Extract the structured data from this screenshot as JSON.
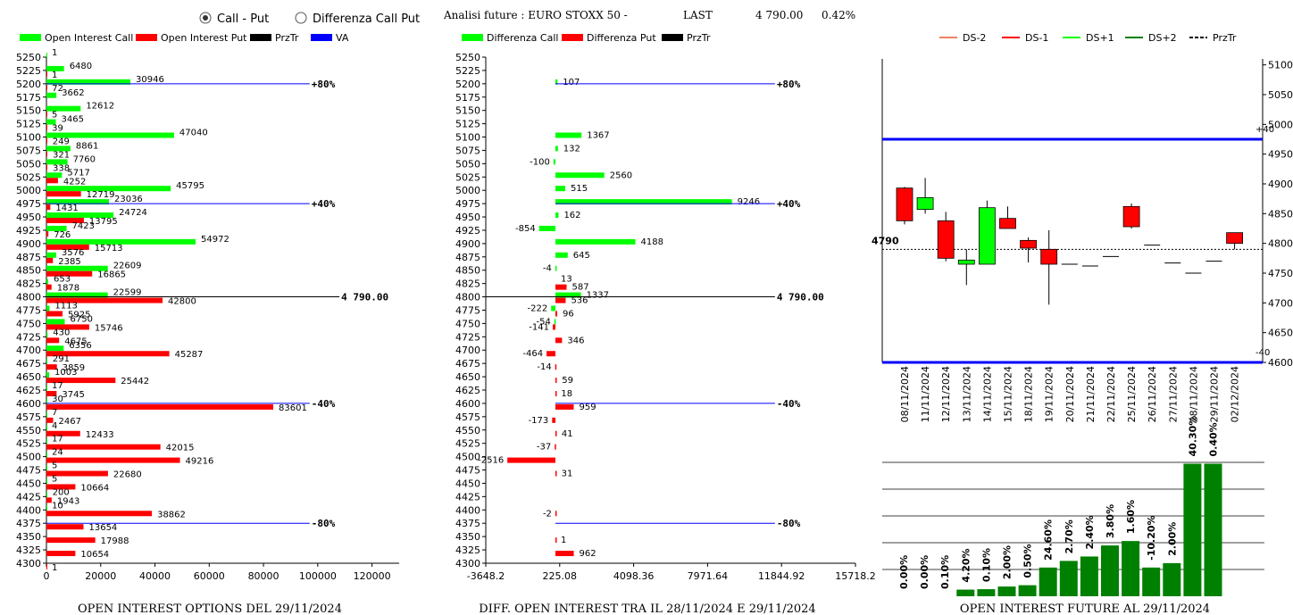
{
  "header": {
    "radio_call_put": "Call - Put",
    "radio_diff": "Differenza Call Put",
    "analysis_title": "Analisi future : EURO STOXX 50 -",
    "last_label": "LAST",
    "last_value": "4 790.00",
    "last_change": "0.42%"
  },
  "colors": {
    "call": "#00ff00",
    "put": "#ff0000",
    "prztr": "#000000",
    "va": "#0000ff",
    "oi_future": "#008000"
  },
  "chart_data": [
    {
      "type": "bar",
      "id": "open-interest-options",
      "title": "OPEN INTEREST OPTIONS DEL 29/11/2024",
      "legend": [
        "Open Interest Call",
        "Open Interest Put",
        "PrzTr",
        "VA"
      ],
      "strikes": [
        5250,
        5225,
        5200,
        5175,
        5150,
        5125,
        5100,
        5075,
        5050,
        5025,
        5000,
        4975,
        4950,
        4925,
        4900,
        4875,
        4850,
        4825,
        4800,
        4775,
        4750,
        4725,
        4700,
        4675,
        4650,
        4625,
        4600,
        4575,
        4550,
        4525,
        4500,
        4475,
        4450,
        4425,
        4400,
        4375,
        4350,
        4325,
        4300
      ],
      "series": [
        {
          "name": "Open Interest Call",
          "values": [
            1,
            6480,
            30946,
            3662,
            12612,
            3465,
            47040,
            8861,
            7760,
            5717,
            45795,
            23036,
            24724,
            7423,
            54972,
            3576,
            22609,
            653,
            22599,
            1113,
            6750,
            430,
            6356,
            291,
            1003,
            17,
            30,
            7,
            4,
            17,
            24,
            5,
            5,
            200,
            10,
            0,
            0,
            0,
            0
          ]
        },
        {
          "name": "Open Interest Put",
          "values": [
            0,
            1,
            72,
            0,
            5,
            39,
            249,
            321,
            338,
            4252,
            12719,
            1431,
            13795,
            726,
            15713,
            2385,
            16865,
            1878,
            42800,
            5925,
            15746,
            4675,
            45287,
            3859,
            25442,
            3745,
            83601,
            2467,
            12433,
            42015,
            49216,
            22680,
            10664,
            1943,
            38862,
            13654,
            17988,
            10654,
            1
          ]
        }
      ],
      "xticks": [
        0,
        20000,
        40000,
        60000,
        80000,
        100000,
        120000
      ],
      "xlim": [
        0,
        130000
      ],
      "ref_lines": [
        {
          "strike": 5200,
          "value": 97000,
          "label": "+80%"
        },
        {
          "strike": 4975,
          "value": 97000,
          "label": "+40%"
        },
        {
          "strike": 4800,
          "value": 108000,
          "label": "4 790.00"
        },
        {
          "strike": 4600,
          "value": 97000,
          "label": "-40%"
        },
        {
          "strike": 4375,
          "value": 97000,
          "label": "-80%"
        }
      ]
    },
    {
      "type": "bar",
      "id": "diff-open-interest",
      "title": "DIFF. OPEN INTEREST TRA IL 28/11/2024 E 29/11/2024",
      "legend": [
        "Differenza Call",
        "Differenza Put",
        "PrzTr"
      ],
      "strikes": [
        5250,
        5225,
        5200,
        5175,
        5150,
        5125,
        5100,
        5075,
        5050,
        5025,
        5000,
        4975,
        4950,
        4925,
        4900,
        4875,
        4850,
        4825,
        4800,
        4775,
        4750,
        4725,
        4700,
        4675,
        4650,
        4625,
        4600,
        4575,
        4550,
        4525,
        4500,
        4475,
        4450,
        4425,
        4400,
        4375,
        4350,
        4325,
        4300
      ],
      "series": [
        {
          "name": "Differenza Call",
          "values": [
            null,
            null,
            107,
            null,
            null,
            null,
            1367,
            132,
            -100,
            2560,
            515,
            9246,
            162,
            -854,
            4188,
            645,
            -4,
            null,
            1337,
            -222,
            -54,
            null,
            null,
            null,
            null,
            null,
            null,
            null,
            null,
            null,
            null,
            null,
            null,
            null,
            null,
            null,
            null,
            null,
            null
          ]
        },
        {
          "name": "Differenza Put",
          "values": [
            null,
            null,
            null,
            null,
            null,
            null,
            null,
            null,
            null,
            null,
            null,
            null,
            null,
            null,
            null,
            null,
            null,
            587,
            536,
            96,
            -141,
            346,
            -464,
            -14,
            59,
            18,
            959,
            -173,
            41,
            -37,
            -2516,
            31,
            null,
            null,
            -2,
            null,
            1,
            962,
            null
          ]
        }
      ],
      "extra_labels": [
        {
          "strike": 4825,
          "value": 13,
          "label": "13"
        }
      ],
      "xticks": [
        -3648.2,
        225.08,
        4098.36,
        7971.64,
        11844.92,
        15718.2
      ],
      "xtick_labels": [
        "-3648.2",
        "225.08",
        "4098.36",
        "7971.64",
        "11844.92",
        "15718.2"
      ],
      "xlim": [
        -3648.2,
        15718.2
      ],
      "ref_lines": [
        {
          "strike": 5200,
          "value": 11500,
          "label": "+80%"
        },
        {
          "strike": 4975,
          "value": 11500,
          "label": "+40%"
        },
        {
          "strike": 4800,
          "value": 11500,
          "label": "4 790.00"
        },
        {
          "strike": 4600,
          "value": 11500,
          "label": "-40%"
        },
        {
          "strike": 4375,
          "value": 11500,
          "label": "-80%"
        }
      ]
    },
    {
      "type": "candlestick",
      "id": "future-candles",
      "legend": [
        "DS-2",
        "DS-1",
        "DS+1",
        "DS+2",
        "PrzTr"
      ],
      "legend_colors": [
        "#f08060",
        "#ff0000",
        "#00ff00",
        "#008000",
        "#000000"
      ],
      "dates": [
        "08/11/2024",
        "11/11/2024",
        "12/11/2024",
        "13/11/2024",
        "14/11/2024",
        "15/11/2024",
        "18/11/2024",
        "19/11/2024",
        "20/11/2024",
        "21/11/2024",
        "22/11/2024",
        "25/11/2024",
        "26/11/2024",
        "27/11/2024",
        "28/11/2024",
        "29/11/2024",
        "02/12/2024"
      ],
      "candles": [
        {
          "open": 4838,
          "close": 4893,
          "high": 4895,
          "low": 4832,
          "color": "#ff0000"
        },
        {
          "open": 4857,
          "close": 4877,
          "high": 4910,
          "low": 4850,
          "color": "#00ff00"
        },
        {
          "open": 4838,
          "close": 4775,
          "high": 4853,
          "low": 4770,
          "color": "#ff0000"
        },
        {
          "open": 4765,
          "close": 4772,
          "high": 4790,
          "low": 4730,
          "color": "#00ff00"
        },
        {
          "open": 4765,
          "close": 4860,
          "high": 4872,
          "low": 4765,
          "color": "#00ff00"
        },
        {
          "open": 4842,
          "close": 4825,
          "high": 4862,
          "low": 4825,
          "color": "#ff0000"
        },
        {
          "open": 4805,
          "close": 4792,
          "high": 4810,
          "low": 4768,
          "color": "#ff0000"
        },
        {
          "open": 4790,
          "close": 4765,
          "high": 4822,
          "low": 4697,
          "color": "#ff0000"
        },
        {
          "open": 4765,
          "close": 4765,
          "high": 4765,
          "low": 4765,
          "color": "#000000"
        },
        {
          "open": 4762,
          "close": 4762,
          "high": 4762,
          "low": 4762,
          "color": "#000000"
        },
        {
          "open": 4778,
          "close": 4778,
          "high": 4778,
          "low": 4778,
          "color": "#000000"
        },
        {
          "open": 4862,
          "close": 4828,
          "high": 4867,
          "low": 4825,
          "color": "#ff0000"
        },
        {
          "open": 4797,
          "close": 4797,
          "high": 4797,
          "low": 4797,
          "color": "#000000"
        },
        {
          "open": 4767,
          "close": 4767,
          "high": 4767,
          "low": 4767,
          "color": "#000000"
        },
        {
          "open": 4750,
          "close": 4750,
          "high": 4750,
          "low": 4750,
          "color": "#000000"
        },
        {
          "open": 4770,
          "close": 4770,
          "high": 4770,
          "low": 4770,
          "color": "#000000"
        },
        {
          "open": 4818,
          "close": 4800,
          "high": 4818,
          "low": 4790,
          "color": "#ff0000"
        }
      ],
      "price_line": {
        "value": 4790,
        "label": "4790"
      },
      "upper_band": {
        "value": 4975,
        "label": "+40"
      },
      "lower_band": {
        "value": 4600,
        "label": "-40"
      },
      "yticks": [
        4600,
        4650,
        4700,
        4750,
        4800,
        4850,
        4900,
        4950,
        5000,
        5050,
        5100
      ],
      "ylim": [
        4600,
        5110
      ]
    },
    {
      "type": "bar",
      "id": "open-interest-future",
      "title": "OPEN INTEREST FUTURE AL 29/11/2024",
      "values": [
        0.0,
        0.0,
        0.1,
        4.2,
        0.1,
        2.0,
        0.5,
        24.6,
        2.7,
        2.4,
        3.8,
        1.6,
        -10.2,
        2.0,
        40.3,
        0.4
      ],
      "labels": [
        "0.00%",
        "0.00%",
        "0.10%",
        "4.20%",
        "0.10%",
        "2.00%",
        "0.50%",
        "24.60%",
        "2.70%",
        "2.40%",
        "3.80%",
        "1.60%",
        "-10.20%",
        "2.00%",
        "40.30%",
        "0.40%"
      ],
      "heights": [
        0,
        0,
        0,
        1.5,
        1.6,
        2.2,
        2.5,
        6.5,
        8.0,
        9.0,
        11.5,
        12.5,
        6.5,
        7.5,
        30,
        30
      ]
    }
  ]
}
